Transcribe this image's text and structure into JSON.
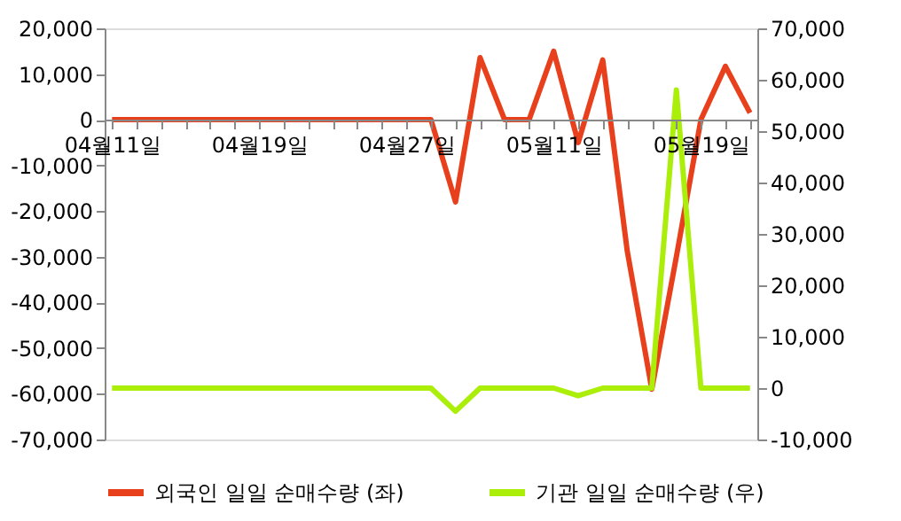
{
  "chart_data": {
    "type": "line",
    "categories": [
      "04월11일",
      null,
      null,
      null,
      null,
      null,
      "04월19일",
      null,
      null,
      null,
      null,
      null,
      "04월27일",
      null,
      null,
      null,
      null,
      null,
      "05월11일",
      null,
      null,
      null,
      null,
      null,
      "05월19일",
      null,
      null
    ],
    "series": [
      {
        "name": "외국인 일일 순매수량 (좌)",
        "color": "#e8401c",
        "values": [
          0,
          0,
          0,
          0,
          0,
          0,
          0,
          0,
          0,
          0,
          0,
          0,
          0,
          0,
          -18000,
          13600,
          0,
          0,
          15000,
          -5000,
          13100,
          -28800,
          -59000,
          -30000,
          0,
          11700,
          1500
        ]
      },
      {
        "name": "기관 일일 순매수량 (우)",
        "color": "#aaee0a",
        "axis": "y2",
        "values": [
          0,
          0,
          0,
          0,
          0,
          0,
          0,
          0,
          0,
          0,
          0,
          0,
          0,
          0,
          -4500,
          0,
          0,
          0,
          0,
          -1500,
          0,
          0,
          0,
          58000,
          0,
          0,
          0
        ]
      }
    ],
    "ylim": [
      -70000,
      20000
    ],
    "yticks": [
      {
        "value": -70000,
        "label": "-70,000"
      },
      {
        "value": -60000,
        "label": "-60,000"
      },
      {
        "value": -50000,
        "label": "-50,000"
      },
      {
        "value": -40000,
        "label": "-40,000"
      },
      {
        "value": -30000,
        "label": "-30,000"
      },
      {
        "value": -20000,
        "label": "-20,000"
      },
      {
        "value": -10000,
        "label": "-10,000"
      },
      0,
      {
        "value": 10000,
        "label": "10,000"
      },
      {
        "value": 20000,
        "label": "20,000"
      }
    ],
    "y2lim": [
      -10000,
      70000
    ],
    "y2ticks": [
      {
        "value": -10000,
        "label": "-10,000"
      },
      0,
      {
        "value": 10000,
        "label": "10,000"
      },
      {
        "value": 20000,
        "label": "20,000"
      },
      {
        "value": 30000,
        "label": "30,000"
      },
      {
        "value": 40000,
        "label": "40,000"
      },
      {
        "value": 50000,
        "label": "50,000"
      },
      {
        "value": 60000,
        "label": "60,000"
      },
      {
        "value": 70000,
        "label": "70,000"
      }
    ],
    "grid": false,
    "legend": "bottom",
    "marker": "none",
    "line_style": "solid"
  }
}
